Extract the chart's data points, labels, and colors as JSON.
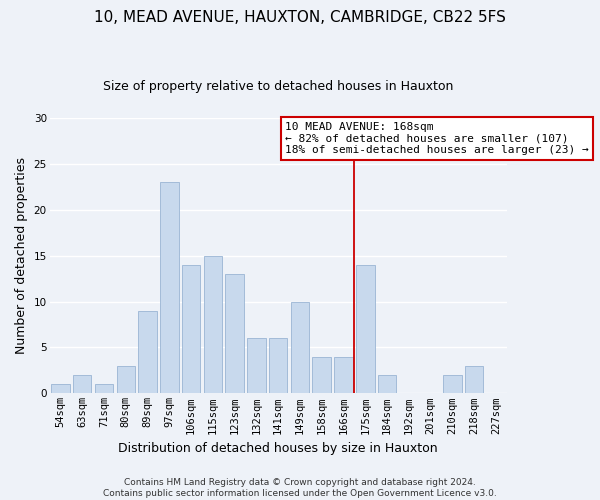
{
  "title": "10, MEAD AVENUE, HAUXTON, CAMBRIDGE, CB22 5FS",
  "subtitle": "Size of property relative to detached houses in Hauxton",
  "xlabel": "Distribution of detached houses by size in Hauxton",
  "ylabel": "Number of detached properties",
  "categories": [
    "54sqm",
    "63sqm",
    "71sqm",
    "80sqm",
    "89sqm",
    "97sqm",
    "106sqm",
    "115sqm",
    "123sqm",
    "132sqm",
    "141sqm",
    "149sqm",
    "158sqm",
    "166sqm",
    "175sqm",
    "184sqm",
    "192sqm",
    "201sqm",
    "210sqm",
    "218sqm",
    "227sqm"
  ],
  "values": [
    1,
    2,
    1,
    3,
    9,
    23,
    14,
    15,
    13,
    6,
    6,
    10,
    4,
    4,
    14,
    2,
    0,
    0,
    2,
    3,
    0
  ],
  "bar_color": "#c8d9ed",
  "bar_edgecolor": "#9ab5d4",
  "vline_x_index": 13.5,
  "vline_color": "#cc0000",
  "ylim": [
    0,
    30
  ],
  "yticks": [
    0,
    5,
    10,
    15,
    20,
    25,
    30
  ],
  "annotation_title": "10 MEAD AVENUE: 168sqm",
  "annotation_line1": "← 82% of detached houses are smaller (107)",
  "annotation_line2": "18% of semi-detached houses are larger (23) →",
  "annotation_box_facecolor": "#ffffff",
  "annotation_box_edgecolor": "#cc0000",
  "footer_line1": "Contains HM Land Registry data © Crown copyright and database right 2024.",
  "footer_line2": "Contains public sector information licensed under the Open Government Licence v3.0.",
  "background_color": "#eef2f8",
  "grid_color": "#ffffff",
  "title_fontsize": 11,
  "subtitle_fontsize": 9,
  "axis_label_fontsize": 9,
  "tick_fontsize": 7.5,
  "footer_fontsize": 6.5,
  "annotation_fontsize": 8
}
